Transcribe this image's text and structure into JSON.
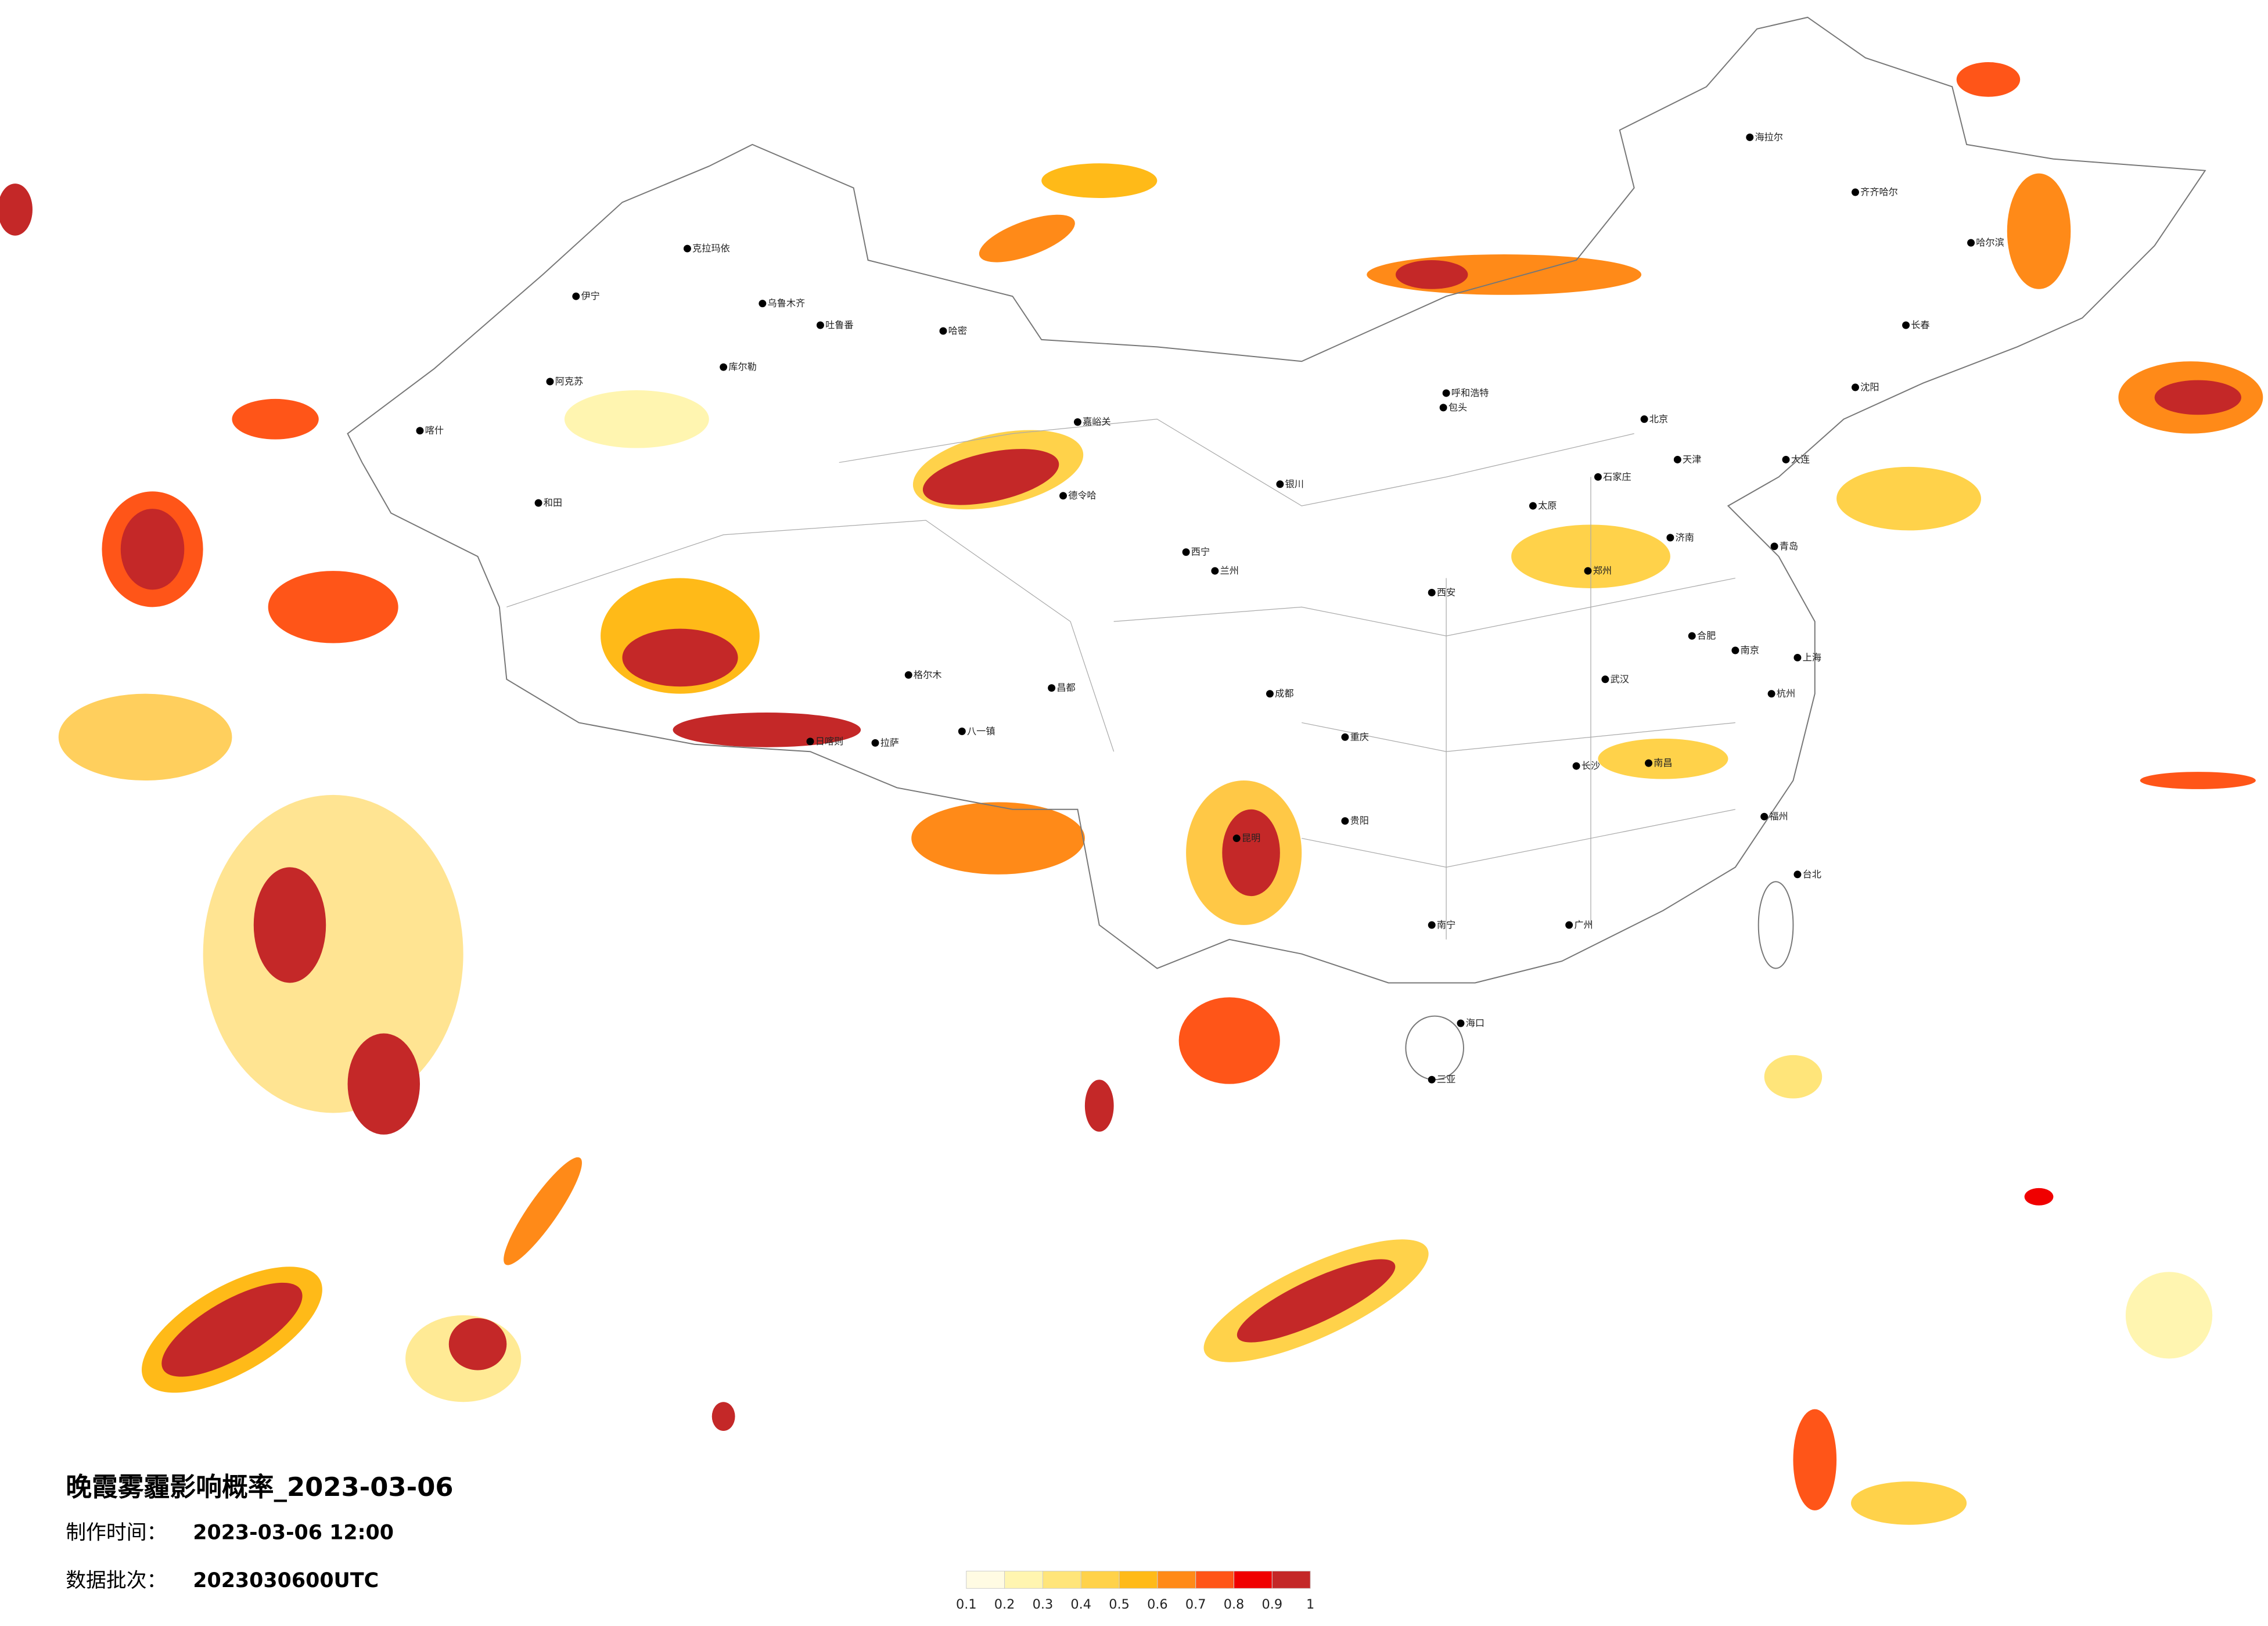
{
  "title": "晚霞雾霾影响概率_2023-03-06",
  "made_time_label": "制作时间：",
  "made_time": "2023-03-06 12:00",
  "batch_label": "数据批次：",
  "batch": "2023030600UTC",
  "legend": {
    "ticks": [
      0.1,
      0.2,
      0.3,
      0.4,
      0.5,
      0.6,
      0.7,
      0.8,
      0.9,
      1
    ],
    "colors": [
      "#fffbe3",
      "#fff5b0",
      "#ffe57a",
      "#ffd24a",
      "#ffba18",
      "#ff8a18",
      "#ff5518",
      "#f00000",
      "#c42828"
    ]
  },
  "cities": [
    "克拉玛依",
    "乌鲁木齐",
    "伊宁",
    "阿克苏",
    "喀什",
    "和田",
    "库尔勒",
    "吐鲁番",
    "哈密",
    "嘉峪关",
    "德令哈",
    "格尔木",
    "拉萨",
    "八一镇",
    "日喀则",
    "昌都",
    "西宁",
    "兰州",
    "银川",
    "呼和浩特",
    "包头",
    "北京",
    "天津",
    "石家庄",
    "太原",
    "济南",
    "郑州",
    "西安",
    "成都",
    "重庆",
    "武汉",
    "长沙",
    "南昌",
    "合肥",
    "南京",
    "上海",
    "杭州",
    "福州",
    "广州",
    "南宁",
    "昆明",
    "贵阳",
    "海口",
    "三亚",
    "台北",
    "沈阳",
    "长春",
    "哈尔滨",
    "齐齐哈尔",
    "海拉尔",
    "大连",
    "青岛"
  ]
}
